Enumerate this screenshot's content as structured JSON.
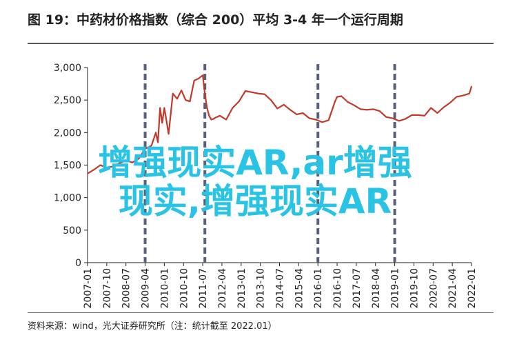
{
  "title": "图 19：中药材价格指数（综合 200）平均 3-4 年一个运行周期",
  "source": "资料来源：wind，光大证券研究所（注：统计截至 2022.01）",
  "watermark": {
    "line1": "增强现实AR,ar增强",
    "line2": "现实,增强现实AR",
    "color": "#29c3e6"
  },
  "colors": {
    "line": "#c0392b",
    "cycle_marker": "#5a5f7a",
    "axis": "#222222"
  },
  "chart_data": {
    "type": "line",
    "title": "图 19：中药材价格指数（综合 200）平均 3-4 年一个运行周期",
    "xlabel": "",
    "ylabel": "",
    "ylim": [
      0,
      3000
    ],
    "yticks": [
      0,
      500,
      1000,
      1500,
      2000,
      2500,
      3000
    ],
    "ytick_labels": [
      "0",
      "500",
      "1,000",
      "1,500",
      "2,000",
      "2,500",
      "3,000"
    ],
    "xlim": [
      "2007-01",
      "2022-01"
    ],
    "xtick_labels": [
      "2007-01",
      "2007-10",
      "2008-07",
      "2009-04",
      "2010-01",
      "2010-10",
      "2011-07",
      "2012-04",
      "2013-01",
      "2013-10",
      "2014-07",
      "2015-04",
      "2016-01",
      "2016-10",
      "2017-07",
      "2018-04",
      "2019-01",
      "2019-10",
      "2020-07",
      "2021-04",
      "2022-01"
    ],
    "grid": false,
    "legend": "none",
    "cycle_markers": [
      "2009-04",
      "2011-08",
      "2016-01",
      "2019-01"
    ],
    "series": [
      {
        "x": [
          "2007-01",
          "2007-04",
          "2007-07",
          "2007-10",
          "2008-01",
          "2008-04",
          "2008-07",
          "2008-10",
          "2009-01",
          "2009-04",
          "2009-07",
          "2009-09",
          "2009-10",
          "2009-11",
          "2009-12",
          "2010-01",
          "2010-03",
          "2010-05",
          "2010-07",
          "2010-09",
          "2010-11",
          "2011-01",
          "2011-03",
          "2011-05",
          "2011-07",
          "2011-08",
          "2011-09",
          "2011-10",
          "2011-11",
          "2011-12",
          "2012-01",
          "2012-03",
          "2012-06",
          "2012-09",
          "2012-12",
          "2013-03",
          "2013-06",
          "2013-09",
          "2013-12",
          "2014-03",
          "2014-06",
          "2014-09",
          "2014-12",
          "2015-03",
          "2015-06",
          "2015-09",
          "2015-12",
          "2016-03",
          "2016-06",
          "2016-09",
          "2016-10",
          "2016-12",
          "2017-03",
          "2017-06",
          "2017-09",
          "2017-12",
          "2018-03",
          "2018-06",
          "2018-09",
          "2018-12",
          "2019-03",
          "2019-06",
          "2019-09",
          "2019-12",
          "2020-03",
          "2020-06",
          "2020-09",
          "2020-12",
          "2021-03",
          "2021-06",
          "2021-09",
          "2021-12",
          "2022-01"
        ],
        "values": [
          1370,
          1430,
          1500,
          1460,
          1480,
          1530,
          1570,
          1540,
          1600,
          1750,
          1800,
          2000,
          1850,
          2380,
          2150,
          2380,
          1980,
          2600,
          2520,
          2650,
          2500,
          2480,
          2800,
          2830,
          2880,
          2600,
          2380,
          2260,
          2200,
          2210,
          2230,
          2260,
          2200,
          2380,
          2480,
          2640,
          2620,
          2600,
          2590,
          2500,
          2370,
          2430,
          2350,
          2280,
          2300,
          2220,
          2200,
          2160,
          2190,
          2480,
          2550,
          2560,
          2470,
          2420,
          2360,
          2350,
          2360,
          2330,
          2240,
          2220,
          2180,
          2210,
          2270,
          2270,
          2260,
          2380,
          2300,
          2390,
          2460,
          2550,
          2570,
          2600,
          2710
        ]
      }
    ]
  }
}
